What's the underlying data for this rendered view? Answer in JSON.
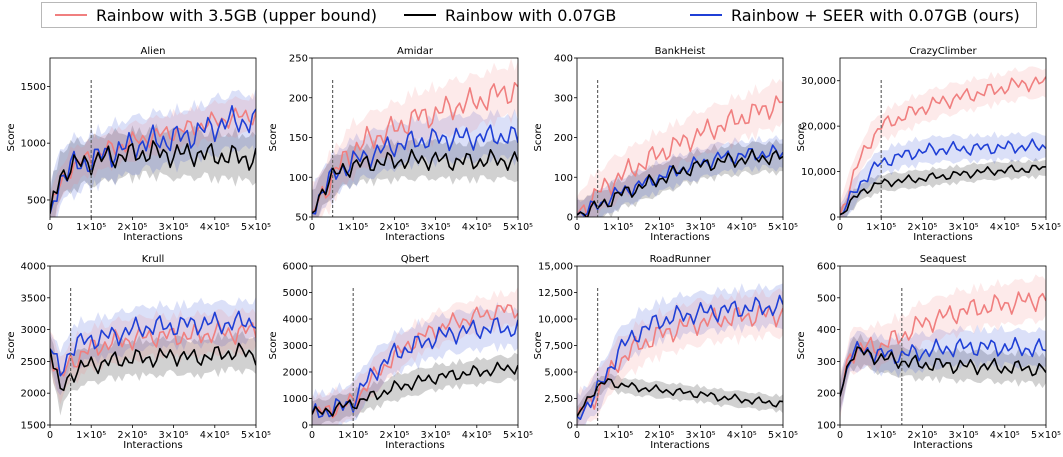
{
  "legend": {
    "items": [
      {
        "label": "Rainbow with 3.5GB (upper bound)",
        "color": "#f07f7f"
      },
      {
        "label": "Rainbow with 0.07GB",
        "color": "#000000"
      },
      {
        "label": "Rainbow + SEER with 0.07GB (ours)",
        "color": "#1f3fd6"
      }
    ]
  },
  "x_tick_labels": [
    "0",
    "1×10⁵",
    "2×10⁵",
    "3×10⁵",
    "4×10⁵",
    "5×10⁵"
  ],
  "chart_data": [
    {
      "type": "line",
      "title": "Alien",
      "xlabel": "Interactions",
      "ylabel": "Score",
      "xlim": [
        0,
        500000
      ],
      "ylim": [
        350,
        1750
      ],
      "yticks": [
        500,
        1000,
        1500
      ],
      "ytick_labels": [
        "500",
        "1000",
        "1500"
      ],
      "freeze_x": 100000,
      "x": [
        0,
        25000,
        50000,
        75000,
        100000,
        150000,
        200000,
        250000,
        300000,
        350000,
        400000,
        450000,
        500000
      ],
      "series": [
        {
          "name": "Rainbow with 3.5GB (upper bound)",
          "values": [
            380,
            640,
            780,
            830,
            880,
            950,
            1010,
            1060,
            1100,
            1140,
            1190,
            1230,
            1250
          ],
          "spread": 170
        },
        {
          "name": "Rainbow with 0.07GB",
          "values": [
            380,
            720,
            790,
            820,
            840,
            880,
            900,
            920,
            900,
            910,
            890,
            880,
            860
          ],
          "spread": 220
        },
        {
          "name": "Rainbow + SEER with 0.07GB (ours)",
          "values": [
            380,
            700,
            790,
            810,
            850,
            920,
            980,
            1020,
            1040,
            1080,
            1150,
            1200,
            1180
          ],
          "spread": 260
        }
      ]
    },
    {
      "type": "line",
      "title": "Amidar",
      "xlabel": "Interactions",
      "ylabel": "Score",
      "xlim": [
        0,
        500000
      ],
      "ylim": [
        50,
        250
      ],
      "yticks": [
        50,
        100,
        150,
        200,
        250
      ],
      "ytick_labels": [
        "50",
        "100",
        "150",
        "200",
        "250"
      ],
      "freeze_x": 50000,
      "x": [
        0,
        25000,
        50000,
        75000,
        100000,
        150000,
        200000,
        250000,
        300000,
        350000,
        400000,
        450000,
        500000
      ],
      "series": [
        {
          "name": "Rainbow with 3.5GB (upper bound)",
          "values": [
            55,
            80,
            100,
            120,
            135,
            150,
            160,
            175,
            180,
            190,
            195,
            205,
            210
          ],
          "spread": 35
        },
        {
          "name": "Rainbow with 0.07GB",
          "values": [
            55,
            85,
            100,
            110,
            115,
            118,
            120,
            122,
            122,
            120,
            120,
            122,
            120
          ],
          "spread": 25
        },
        {
          "name": "Rainbow + SEER with 0.07GB (ours)",
          "values": [
            55,
            85,
            100,
            112,
            120,
            130,
            140,
            145,
            148,
            150,
            150,
            152,
            150
          ],
          "spread": 30
        }
      ]
    },
    {
      "type": "line",
      "title": "BankHeist",
      "xlabel": "Interactions",
      "ylabel": "Score",
      "xlim": [
        0,
        500000
      ],
      "ylim": [
        0,
        400
      ],
      "yticks": [
        0,
        100,
        200,
        300,
        400
      ],
      "ytick_labels": [
        "0",
        "100",
        "200",
        "300",
        "400"
      ],
      "freeze_x": 50000,
      "x": [
        0,
        25000,
        50000,
        75000,
        100000,
        150000,
        200000,
        250000,
        300000,
        350000,
        400000,
        450000,
        500000
      ],
      "series": [
        {
          "name": "Rainbow with 3.5GB (upper bound)",
          "values": [
            5,
            30,
            60,
            80,
            100,
            130,
            160,
            185,
            210,
            230,
            250,
            270,
            290
          ],
          "spread": 60
        },
        {
          "name": "Rainbow with 0.07GB",
          "values": [
            5,
            15,
            25,
            40,
            55,
            75,
            95,
            115,
            130,
            140,
            145,
            150,
            150
          ],
          "spread": 40
        },
        {
          "name": "Rainbow + SEER with 0.07GB (ours)",
          "values": [
            5,
            15,
            30,
            45,
            60,
            80,
            100,
            120,
            135,
            150,
            155,
            160,
            160
          ],
          "spread": 40
        }
      ]
    },
    {
      "type": "line",
      "title": "CrazyClimber",
      "xlabel": "Interactions",
      "ylabel": "Score",
      "xlim": [
        0,
        500000
      ],
      "ylim": [
        0,
        35000
      ],
      "yticks": [
        0,
        10000,
        20000,
        30000
      ],
      "ytick_labels": [
        "0",
        "10,000",
        "20,000",
        "30,000"
      ],
      "freeze_x": 100000,
      "x": [
        0,
        25000,
        50000,
        75000,
        100000,
        150000,
        200000,
        250000,
        300000,
        350000,
        400000,
        450000,
        500000
      ],
      "series": [
        {
          "name": "Rainbow with 3.5GB (upper bound)",
          "values": [
            500,
            7000,
            13000,
            17000,
            20000,
            22000,
            24000,
            25500,
            26500,
            27500,
            28500,
            29500,
            29500
          ],
          "spread": 3500
        },
        {
          "name": "Rainbow with 0.07GB",
          "values": [
            500,
            3000,
            5500,
            6500,
            7500,
            8000,
            8500,
            9000,
            9500,
            10000,
            10300,
            10500,
            10800
          ],
          "spread": 2000
        },
        {
          "name": "Rainbow + SEER with 0.07GB (ours)",
          "values": [
            500,
            4000,
            7500,
            10000,
            12000,
            13500,
            14500,
            15000,
            15000,
            15200,
            15300,
            15500,
            15500
          ],
          "spread": 3000
        }
      ]
    },
    {
      "type": "line",
      "title": "Krull",
      "xlabel": "Interactions",
      "ylabel": "Score",
      "xlim": [
        0,
        500000
      ],
      "ylim": [
        1500,
        4000
      ],
      "yticks": [
        1500,
        2000,
        2500,
        3000,
        3500,
        4000
      ],
      "ytick_labels": [
        "1500",
        "2000",
        "2500",
        "3000",
        "3500",
        "4000"
      ],
      "freeze_x": 50000,
      "x": [
        0,
        25000,
        50000,
        75000,
        100000,
        150000,
        200000,
        250000,
        300000,
        350000,
        400000,
        450000,
        500000
      ],
      "series": [
        {
          "name": "Rainbow with 3.5GB (upper bound)",
          "values": [
            2700,
            2200,
            2500,
            2600,
            2700,
            2800,
            2850,
            2900,
            2900,
            2900,
            2950,
            2950,
            3000
          ],
          "spread": 350
        },
        {
          "name": "Rainbow with 0.07GB",
          "values": [
            2700,
            2000,
            2300,
            2400,
            2450,
            2500,
            2550,
            2550,
            2600,
            2550,
            2600,
            2650,
            2600
          ],
          "spread": 300
        },
        {
          "name": "Rainbow + SEER with 0.07GB (ours)",
          "values": [
            2700,
            2300,
            2700,
            2800,
            2850,
            2900,
            3000,
            3050,
            3050,
            3100,
            3100,
            3100,
            3150
          ],
          "spread": 350
        }
      ]
    },
    {
      "type": "line",
      "title": "Qbert",
      "xlabel": "Interactions",
      "ylabel": "Score",
      "xlim": [
        0,
        500000
      ],
      "ylim": [
        0,
        6000
      ],
      "yticks": [
        0,
        1000,
        2000,
        3000,
        4000,
        5000,
        6000
      ],
      "ytick_labels": [
        "0",
        "1000",
        "2000",
        "3000",
        "4000",
        "5000",
        "6000"
      ],
      "freeze_x": 100000,
      "x": [
        0,
        25000,
        50000,
        75000,
        100000,
        150000,
        200000,
        250000,
        300000,
        350000,
        400000,
        450000,
        500000
      ],
      "series": [
        {
          "name": "Rainbow with 3.5GB (upper bound)",
          "values": [
            400,
            500,
            600,
            700,
            900,
            1800,
            2600,
            3200,
            3600,
            3900,
            4100,
            4300,
            4400
          ],
          "spread": 700
        },
        {
          "name": "Rainbow with 0.07GB",
          "values": [
            400,
            500,
            600,
            700,
            800,
            1100,
            1400,
            1600,
            1800,
            1900,
            2000,
            2100,
            2200
          ],
          "spread": 500
        },
        {
          "name": "Rainbow + SEER with 0.07GB (ours)",
          "values": [
            400,
            500,
            600,
            700,
            900,
            2000,
            2700,
            3000,
            3300,
            3500,
            3600,
            3700,
            3600
          ],
          "spread": 800
        }
      ]
    },
    {
      "type": "line",
      "title": "RoadRunner",
      "xlabel": "Interactions",
      "ylabel": "Score",
      "xlim": [
        0,
        500000
      ],
      "ylim": [
        0,
        15000
      ],
      "yticks": [
        0,
        2500,
        5000,
        7500,
        10000,
        12500,
        15000
      ],
      "ytick_labels": [
        "0",
        "2,500",
        "5,000",
        "7,500",
        "10,000",
        "12,500",
        "15,000"
      ],
      "freeze_x": 50000,
      "x": [
        0,
        25000,
        50000,
        75000,
        100000,
        150000,
        200000,
        250000,
        300000,
        350000,
        400000,
        450000,
        500000
      ],
      "series": [
        {
          "name": "Rainbow with 3.5GB (upper bound)",
          "values": [
            800,
            2000,
            3000,
            4500,
            6000,
            7500,
            8500,
            9200,
            9700,
            10000,
            10200,
            10400,
            10500
          ],
          "spread": 2200
        },
        {
          "name": "Rainbow with 0.07GB",
          "values": [
            800,
            2500,
            3500,
            4200,
            3800,
            3500,
            3300,
            3100,
            2900,
            2600,
            2400,
            2200,
            2000
          ],
          "spread": 800
        },
        {
          "name": "Rainbow + SEER with 0.07GB (ours)",
          "values": [
            800,
            2000,
            3200,
            5000,
            7000,
            8800,
            9800,
            10300,
            10600,
            10800,
            11000,
            11100,
            11200
          ],
          "spread": 2000
        }
      ]
    },
    {
      "type": "line",
      "title": "Seaquest",
      "xlabel": "Interactions",
      "ylabel": "Score",
      "xlim": [
        0,
        500000
      ],
      "ylim": [
        100,
        600
      ],
      "yticks": [
        100,
        200,
        300,
        400,
        500,
        600
      ],
      "ytick_labels": [
        "100",
        "200",
        "300",
        "400",
        "500",
        "600"
      ],
      "freeze_x": 150000,
      "x": [
        0,
        25000,
        50000,
        75000,
        100000,
        150000,
        200000,
        250000,
        300000,
        350000,
        400000,
        450000,
        500000
      ],
      "series": [
        {
          "name": "Rainbow with 3.5GB (upper bound)",
          "values": [
            190,
            330,
            340,
            345,
            350,
            380,
            420,
            440,
            460,
            470,
            480,
            490,
            500
          ],
          "spread": 70
        },
        {
          "name": "Rainbow with 0.07GB",
          "values": [
            190,
            320,
            330,
            320,
            310,
            300,
            290,
            290,
            285,
            285,
            280,
            280,
            270
          ],
          "spread": 50
        },
        {
          "name": "Rainbow + SEER with 0.07GB (ours)",
          "values": [
            190,
            320,
            335,
            330,
            320,
            320,
            330,
            340,
            345,
            345,
            345,
            340,
            340
          ],
          "spread": 60
        }
      ]
    }
  ]
}
